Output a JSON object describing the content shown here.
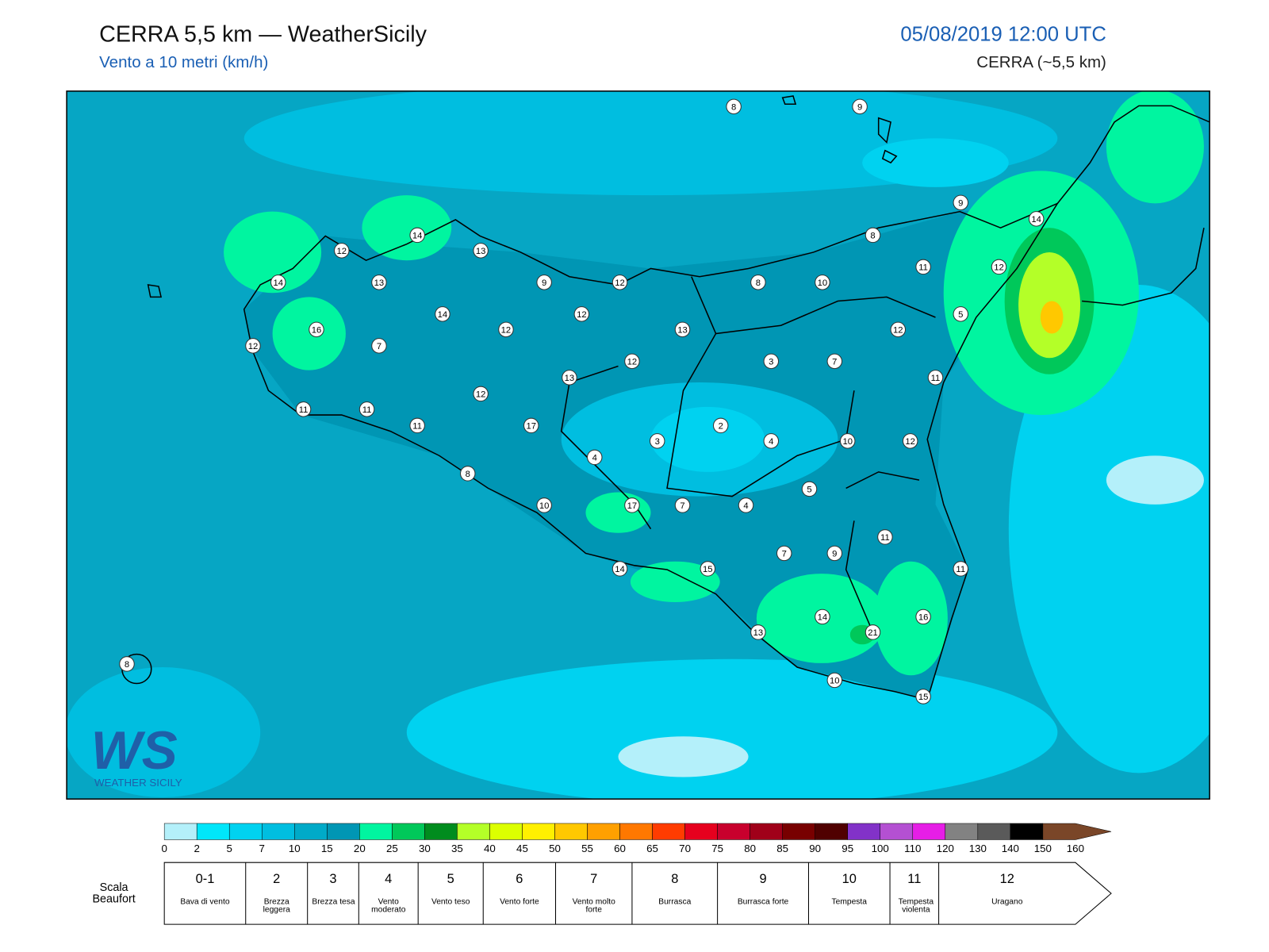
{
  "header": {
    "title": "CERRA 5,5 km — WeatherSicily",
    "subtitle": "Vento a 10 metri (km/h)",
    "date": "05/08/2019 12:00 UTC",
    "model": "CERRA (~5,5 km)"
  },
  "map": {
    "stations": [
      8,
      9,
      9,
      14,
      8,
      14,
      12,
      13,
      11,
      12,
      14,
      13,
      9,
      12,
      8,
      10,
      14,
      12,
      5,
      16,
      12,
      13,
      12,
      12,
      7,
      12,
      3,
      7,
      13,
      11,
      12,
      11,
      11,
      11,
      17,
      2,
      3,
      4,
      10,
      12,
      4,
      8,
      5,
      10,
      17,
      7,
      4,
      11,
      7,
      9,
      14,
      15,
      11,
      14,
      16,
      21,
      13,
      8,
      10,
      15
    ],
    "logo": {
      "mark": "WS",
      "name": "WEATHER SICILY"
    }
  },
  "colorbar": {
    "ticks": [
      0,
      2,
      5,
      7,
      10,
      15,
      20,
      25,
      30,
      35,
      40,
      45,
      50,
      55,
      60,
      65,
      70,
      75,
      80,
      85,
      90,
      95,
      100,
      110,
      120,
      130,
      140,
      150,
      160
    ],
    "colors": [
      "#b4f0fa",
      "#00e6fa",
      "#00d2f0",
      "#00bee0",
      "#00aac8",
      "#0096b4",
      "#00f5a0",
      "#00c85a",
      "#008c1e",
      "#b4ff28",
      "#dcff00",
      "#fff000",
      "#ffc800",
      "#ffa000",
      "#ff7800",
      "#ff3c00",
      "#e6001e",
      "#c8002d",
      "#a00019",
      "#780000",
      "#500000",
      "#8232c8",
      "#b450d2",
      "#e61ee6",
      "#828282",
      "#5a5a5a",
      "#000000",
      "#7a4628",
      "#c8844a"
    ]
  },
  "beaufort": {
    "label": "Scala Beaufort",
    "levels": [
      {
        "force": "0-1",
        "desc": "Bava di vento"
      },
      {
        "force": "2",
        "desc": "Brezza leggera"
      },
      {
        "force": "3",
        "desc": "Brezza tesa"
      },
      {
        "force": "4",
        "desc": "Vento moderato"
      },
      {
        "force": "5",
        "desc": "Vento teso"
      },
      {
        "force": "6",
        "desc": "Vento forte"
      },
      {
        "force": "7",
        "desc": "Vento molto forte"
      },
      {
        "force": "8",
        "desc": "Burrasca"
      },
      {
        "force": "9",
        "desc": "Burrasca forte"
      },
      {
        "force": "10",
        "desc": "Tempesta"
      },
      {
        "force": "11",
        "desc": "Tempesta violenta"
      },
      {
        "force": "12",
        "desc": "Uragano"
      }
    ]
  }
}
